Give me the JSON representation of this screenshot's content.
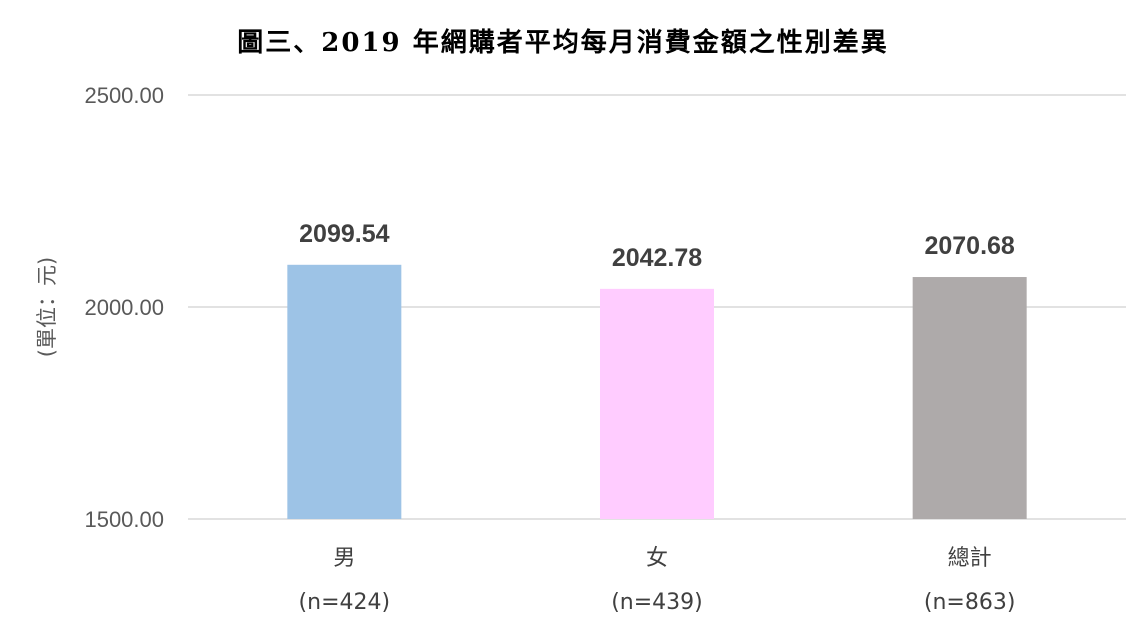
{
  "chart_data": {
    "type": "bar",
    "title": "圖三、2019 年網購者平均每月消費金額之性別差異",
    "ylabel": "(單位：元)",
    "xlabel": "",
    "categories": [
      "男",
      "女",
      "總計"
    ],
    "category_sublabels": [
      "(n=424)",
      "(n=439)",
      "(n=863)"
    ],
    "values": [
      2099.54,
      2042.78,
      2070.68
    ],
    "value_labels": [
      "2099.54",
      "2042.78",
      "2070.68"
    ],
    "bar_colors": [
      "#9dc3e6",
      "#ffccff",
      "#aeaaaa"
    ],
    "ylim": [
      1500,
      2500
    ],
    "yticks": [
      1500,
      2000,
      2500
    ],
    "ytick_labels": [
      "1500.00",
      "2000.00",
      "2500.00"
    ],
    "grid": true,
    "legend": "none"
  }
}
